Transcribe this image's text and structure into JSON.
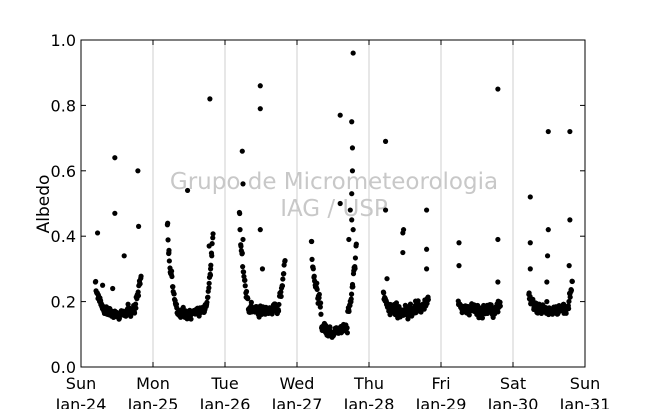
{
  "chart_data": {
    "type": "scatter",
    "title": "",
    "xlabel": "",
    "ylabel": "Albedo",
    "ylim": [
      0.0,
      1.0
    ],
    "yticks": [
      "0.0",
      "0.2",
      "0.4",
      "0.6",
      "0.8",
      "1.0"
    ],
    "xlim": [
      "Sun Jan-24",
      "Sun Jan-31"
    ],
    "xticks": [
      {
        "day": "Sun",
        "date": "Jan-24"
      },
      {
        "day": "Mon",
        "date": "Jan-25"
      },
      {
        "day": "Tue",
        "date": "Jan-26"
      },
      {
        "day": "Wed",
        "date": "Jan-27"
      },
      {
        "day": "Thu",
        "date": "Jan-28"
      },
      {
        "day": "Fri",
        "date": "Jan-29"
      },
      {
        "day": "Sat",
        "date": "Jan-30"
      },
      {
        "day": "Sun",
        "date": "Jan-31"
      }
    ],
    "grid": "vertical",
    "watermark": [
      "Grupo de Micrometeorologia",
      "IAG / USP"
    ],
    "colors": {
      "points": "#000000",
      "grid": "#cfcfcf",
      "watermark": "#c8c8c8"
    },
    "daily": [
      {
        "date": "Jan-24",
        "start": 0.2,
        "end": 0.83,
        "noon_min": 0.14,
        "start_val": 0.26,
        "end_val": 0.28,
        "outliers": [
          [
            0.23,
            0.41
          ],
          [
            0.47,
            0.64
          ],
          [
            0.47,
            0.47
          ],
          [
            0.6,
            0.34
          ],
          [
            0.79,
            0.6
          ],
          [
            0.8,
            0.43
          ],
          [
            0.3,
            0.25
          ],
          [
            0.44,
            0.24
          ]
        ]
      },
      {
        "date": "Jan-25",
        "start": 1.2,
        "end": 1.83,
        "noon_min": 0.14,
        "start_val": 0.43,
        "end_val": 0.4,
        "outliers": [
          [
            1.48,
            0.54
          ],
          [
            1.79,
            0.82
          ],
          [
            1.78,
            0.37
          ],
          [
            1.22,
            0.35
          ],
          [
            1.8,
            0.3
          ]
        ]
      },
      {
        "date": "Jan-26",
        "start": 2.2,
        "end": 2.83,
        "noon_min": 0.15,
        "start_val": 0.47,
        "end_val": 0.33,
        "outliers": [
          [
            2.24,
            0.66
          ],
          [
            2.49,
            0.86
          ],
          [
            2.49,
            0.79
          ],
          [
            2.49,
            0.42
          ],
          [
            2.25,
            0.39
          ],
          [
            2.25,
            0.56
          ],
          [
            2.52,
            0.3
          ]
        ]
      },
      {
        "date": "Jan-27",
        "start": 3.2,
        "end": 3.82,
        "noon_min": 0.09,
        "start_val": 0.38,
        "end_val": 0.36,
        "outliers": [
          [
            3.78,
            0.96
          ],
          [
            3.6,
            0.77
          ],
          [
            3.76,
            0.75
          ],
          [
            3.77,
            0.67
          ],
          [
            3.77,
            0.6
          ],
          [
            3.76,
            0.53
          ],
          [
            3.74,
            0.48
          ],
          [
            3.76,
            0.45
          ],
          [
            3.72,
            0.39
          ],
          [
            3.6,
            0.5
          ],
          [
            3.78,
            0.42
          ]
        ]
      },
      {
        "date": "Jan-28",
        "start": 4.2,
        "end": 4.82,
        "noon_min": 0.15,
        "start_val": 0.22,
        "end_val": 0.22,
        "outliers": [
          [
            4.23,
            0.69
          ],
          [
            4.23,
            0.48
          ],
          [
            4.8,
            0.48
          ],
          [
            4.48,
            0.42
          ],
          [
            4.47,
            0.41
          ],
          [
            4.47,
            0.35
          ],
          [
            4.8,
            0.36
          ],
          [
            4.8,
            0.3
          ],
          [
            4.25,
            0.27
          ]
        ]
      },
      {
        "date": "Jan-29",
        "start": 5.24,
        "end": 5.82,
        "noon_min": 0.15,
        "start_val": 0.21,
        "end_val": 0.2,
        "outliers": [
          [
            5.25,
            0.38
          ],
          [
            5.25,
            0.31
          ],
          [
            5.79,
            0.85
          ],
          [
            5.79,
            0.39
          ],
          [
            5.79,
            0.26
          ]
        ]
      },
      {
        "date": "Jan-30",
        "start": 6.22,
        "end": 6.82,
        "noon_min": 0.15,
        "start_val": 0.22,
        "end_val": 0.25,
        "outliers": [
          [
            6.24,
            0.52
          ],
          [
            6.24,
            0.38
          ],
          [
            6.24,
            0.3
          ],
          [
            6.49,
            0.72
          ],
          [
            6.49,
            0.42
          ],
          [
            6.48,
            0.34
          ],
          [
            6.79,
            0.72
          ],
          [
            6.79,
            0.45
          ],
          [
            6.78,
            0.31
          ],
          [
            6.47,
            0.26
          ],
          [
            6.47,
            0.2
          ]
        ]
      }
    ]
  }
}
